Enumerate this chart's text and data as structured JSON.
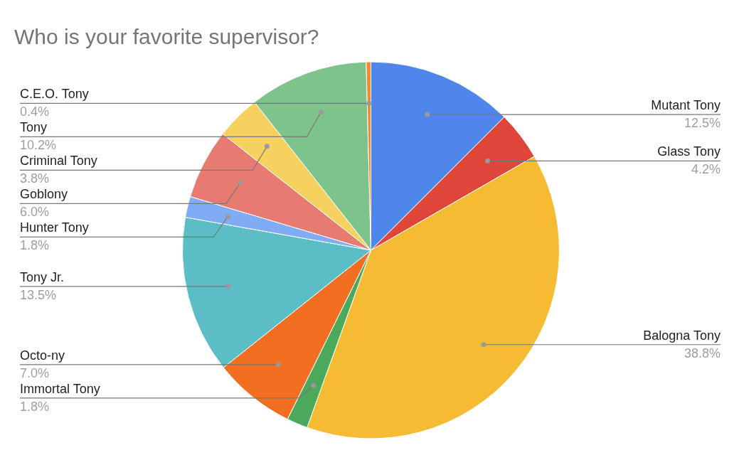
{
  "chart_data": {
    "type": "pie",
    "title": "Who is your favorite supervisor?",
    "categories": [
      "Mutant Tony",
      "Glass Tony",
      "Balogna Tony",
      "Immortal Tony",
      "Octo-ny",
      "Tony Jr.",
      "Hunter Tony",
      "Goblony",
      "Criminal Tony",
      "Tony",
      "C.E.O. Tony"
    ],
    "values": [
      12.5,
      4.2,
      38.8,
      1.8,
      7.0,
      13.5,
      1.8,
      6.0,
      3.8,
      10.2,
      0.4
    ],
    "value_labels": [
      "12.5%",
      "4.2%",
      "38.8%",
      "1.8%",
      "7.0%",
      "13.5%",
      "1.8%",
      "6.0%",
      "3.8%",
      "10.2%",
      "0.4%"
    ],
    "colors": [
      "#4f86ec",
      "#e0453a",
      "#f4bb33",
      "#4aa95a",
      "#f26e21",
      "#5bbdc5",
      "#7facf4",
      "#e77b71",
      "#f7d15f",
      "#7dc38b",
      "#f28b30"
    ],
    "legend": false
  }
}
